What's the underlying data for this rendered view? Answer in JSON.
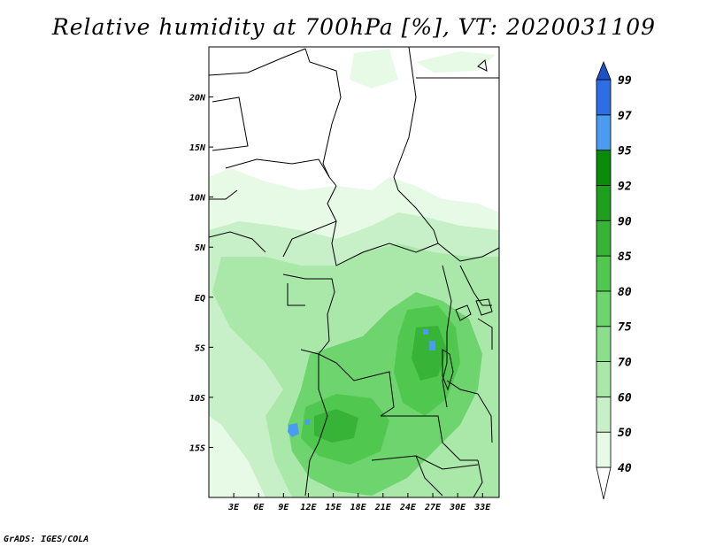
{
  "title": "Relative humidity at 700hPa [%], VT: 2020031109",
  "credit": "GrADS: IGES/COLA",
  "map": {
    "lon_range": [
      0,
      35
    ],
    "lat_range": [
      -20,
      25
    ],
    "lon_ticks": [
      {
        "value": 3,
        "label": "3E"
      },
      {
        "value": 6,
        "label": "6E"
      },
      {
        "value": 9,
        "label": "9E"
      },
      {
        "value": 12,
        "label": "12E"
      },
      {
        "value": 15,
        "label": "15E"
      },
      {
        "value": 18,
        "label": "18E"
      },
      {
        "value": 21,
        "label": "21E"
      },
      {
        "value": 24,
        "label": "24E"
      },
      {
        "value": 27,
        "label": "27E"
      },
      {
        "value": 30,
        "label": "30E"
      },
      {
        "value": 33,
        "label": "33E"
      }
    ],
    "lat_ticks": [
      {
        "value": 20,
        "label": "20N"
      },
      {
        "value": 15,
        "label": "15N"
      },
      {
        "value": 10,
        "label": "10N"
      },
      {
        "value": 5,
        "label": "5N"
      },
      {
        "value": 0,
        "label": "EQ"
      },
      {
        "value": -5,
        "label": "5S"
      },
      {
        "value": -10,
        "label": "10S"
      },
      {
        "value": -15,
        "label": "15S"
      }
    ],
    "boundary_color": "#000000"
  },
  "colorbar": {
    "levels": [
      "40",
      "50",
      "60",
      "70",
      "75",
      "80",
      "85",
      "90",
      "92",
      "95",
      "97",
      "99"
    ],
    "colors": [
      "#ffffff",
      "#e6fae6",
      "#c8f0c8",
      "#aae8aa",
      "#8cde8c",
      "#6ed46e",
      "#50c850",
      "#37b437",
      "#1ea01e",
      "#0a8c0a",
      "#4b9cf0",
      "#2d6ee6",
      "#1e50c8"
    ]
  },
  "humidity_fields": [
    {
      "level": "50",
      "color": "#e6fae6"
    },
    {
      "level": "60",
      "color": "#c8f0c8"
    },
    {
      "level": "70",
      "color": "#aae8aa"
    },
    {
      "level": "80",
      "color": "#6ed46e"
    },
    {
      "level": "85",
      "color": "#50c850"
    },
    {
      "level": "90",
      "color": "#37b437"
    },
    {
      "level": "97",
      "color": "#4b9cf0"
    }
  ]
}
